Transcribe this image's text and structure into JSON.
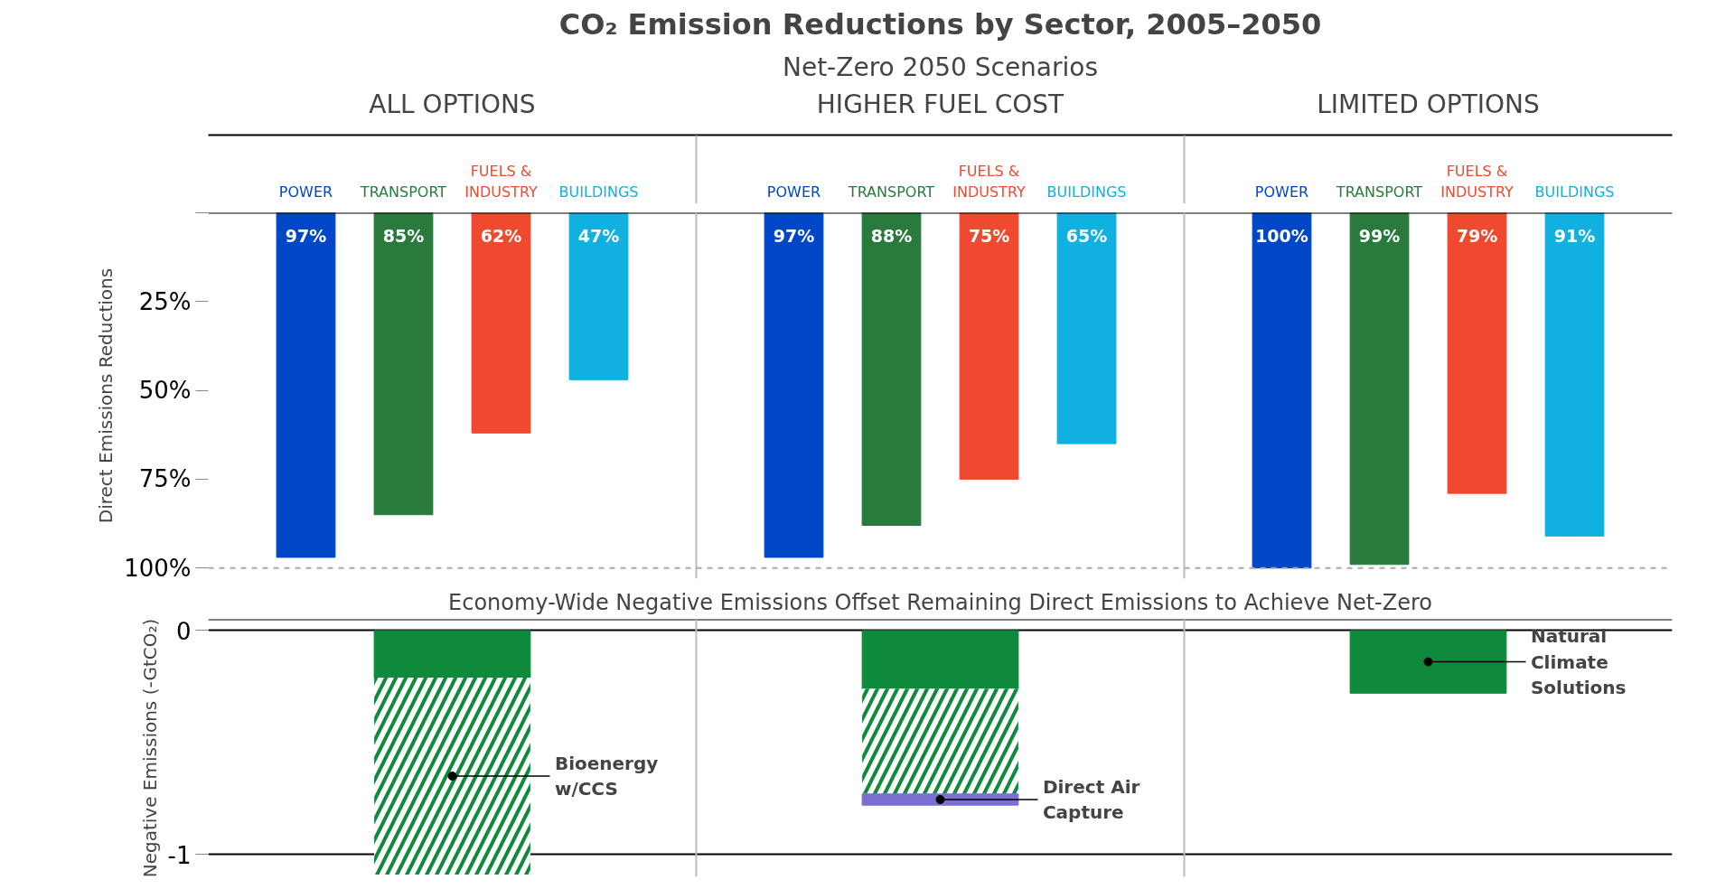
{
  "chart_data": [
    {
      "type": "bar",
      "title": "CO₂ Emission Reductions by Sector, 2005–2050",
      "subtitle": "Net-Zero 2050 Scenarios",
      "ylabel": "Direct Emissions Reductions",
      "categories": [
        "ALL OPTIONS",
        "HIGHER FUEL COST",
        "LIMITED OPTIONS"
      ],
      "series": [
        {
          "name": "POWER",
          "color": "#0047c8",
          "values": [
            97,
            97,
            100
          ],
          "value_labels": [
            "97%",
            "97%",
            "100%"
          ]
        },
        {
          "name": "TRANSPORT",
          "color": "#2a7a3e",
          "values": [
            85,
            88,
            99
          ],
          "value_labels": [
            "85%",
            "88%",
            "99%"
          ]
        },
        {
          "name": "FUELS & INDUSTRY",
          "color": "#ef4a30",
          "values": [
            62,
            75,
            79
          ],
          "value_labels": [
            "62%",
            "75%",
            "79%"
          ]
        },
        {
          "name": "BUILDINGS",
          "color": "#10b0e0",
          "values": [
            47,
            65,
            91
          ],
          "value_labels": [
            "47%",
            "65%",
            "91%"
          ]
        }
      ],
      "ylim": [
        103,
        0
      ],
      "yticks": [
        {
          "value": 0,
          "label": null
        },
        {
          "value": 25,
          "label": "25%"
        },
        {
          "value": 50,
          "label": "50%"
        },
        {
          "value": 75,
          "label": "75%"
        },
        {
          "value": 100,
          "label": "100%"
        }
      ],
      "ref_lines": [
        {
          "axis": "y",
          "value": 100,
          "color": "#aaaaaa",
          "line_style": "dashed"
        }
      ],
      "grid": false,
      "legend": false
    },
    {
      "type": "bar",
      "stacked": true,
      "title": "Economy-Wide Negative Emissions Offset Remaining Direct Emissions to Achieve Net-Zero",
      "ylabel": "Negative Emissions (-GtCO₂)",
      "categories": [
        null,
        null,
        null
      ],
      "series": [
        {
          "name": "Natural Climate Solutions",
          "color": "#0f8a3c",
          "values": [
            -0.21,
            -0.26,
            -0.28
          ]
        },
        {
          "name": "Bioenergy w/CCS",
          "color": "#0f8a3c",
          "values": [
            -0.88,
            -0.47,
            null
          ]
        },
        {
          "name": "Direct Air Capture",
          "color": "#7b6fd0",
          "values": [
            null,
            -0.05,
            null
          ]
        }
      ],
      "ylim": [
        -1.1,
        0.05
      ],
      "yticks": [
        0,
        -1
      ],
      "grid": "y",
      "legend": false,
      "tick_labels": "y"
    }
  ]
}
